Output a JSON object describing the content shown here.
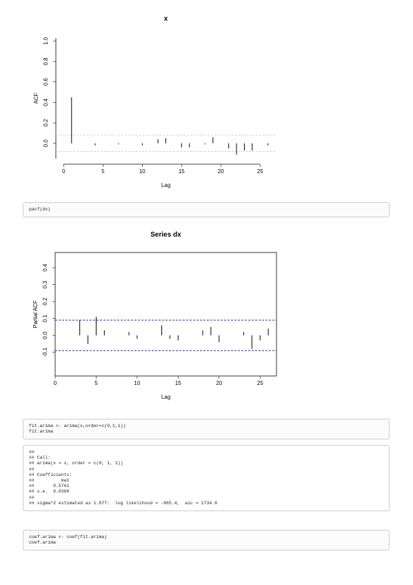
{
  "chart_data": [
    {
      "type": "acf",
      "title": "x",
      "xlabel": "Lag",
      "ylabel": "ACF",
      "x": [
        1,
        2,
        3,
        4,
        5,
        6,
        7,
        8,
        9,
        10,
        11,
        12,
        13,
        14,
        15,
        16,
        17,
        18,
        19,
        20,
        21,
        22,
        23,
        24,
        25,
        26
      ],
      "values": [
        0.45,
        0.0,
        0.0,
        -0.02,
        0.0,
        0.0,
        -0.01,
        0.0,
        0.0,
        -0.02,
        0.0,
        0.04,
        0.05,
        0.0,
        -0.04,
        -0.04,
        0.0,
        -0.01,
        0.06,
        0.0,
        -0.05,
        -0.11,
        -0.07,
        -0.07,
        0.0,
        -0.02
      ],
      "color": "#000000",
      "ci": 0.08,
      "ci_color": "#cccccc",
      "box": false,
      "xlim": [
        -1,
        27
      ],
      "ylim": [
        -0.15,
        1.03
      ],
      "xticks": [
        0,
        5,
        10,
        15,
        20,
        25
      ],
      "yticks": [
        {
          "value": 0,
          "label": "0.0"
        },
        {
          "value": 0.2,
          "label": "0.2"
        },
        {
          "value": 0.4,
          "label": "0.4"
        },
        {
          "value": 0.6,
          "label": "0.6"
        },
        {
          "value": 0.8,
          "label": "0.8"
        },
        {
          "value": 1,
          "label": "1.0"
        }
      ]
    },
    {
      "type": "acf",
      "title": "Series  dx",
      "xlabel": "Lag",
      "ylabel": "Partial ACF",
      "x": [
        1,
        2,
        3,
        4,
        5,
        6,
        7,
        8,
        9,
        10,
        11,
        12,
        13,
        14,
        15,
        16,
        17,
        18,
        19,
        20,
        21,
        22,
        23,
        24,
        25,
        26
      ],
      "values": [
        0.0,
        0.0,
        0.09,
        -0.05,
        0.11,
        0.03,
        0.0,
        0.0,
        0.02,
        -0.02,
        0.0,
        0.0,
        0.06,
        -0.02,
        -0.03,
        0.0,
        0.0,
        0.03,
        0.05,
        -0.04,
        0.0,
        0.0,
        0.02,
        -0.08,
        -0.03,
        0.04
      ],
      "color": "#000000",
      "ci": 0.09,
      "ci_color": "#0000cc",
      "box": true,
      "xlim": [
        0,
        27
      ],
      "ylim": [
        -0.24,
        0.49
      ],
      "xticks": [
        0,
        5,
        10,
        15,
        20,
        25
      ],
      "yticks": [
        {
          "value": -0.1,
          "label": "-0.1"
        },
        {
          "value": 0,
          "label": "0.0"
        },
        0.1,
        0.2,
        0.3,
        0.4
      ]
    }
  ],
  "code_blocks": [
    {
      "lines": [
        "pacf(dx)"
      ]
    },
    {
      "lines": [
        "fit.arima <- arima(x,order=c(0,1,1))",
        "fit.arima"
      ]
    },
    {
      "lines": [
        "##",
        "## Call:",
        "## arima(x = x, order = c(0, 1, 1))",
        "##",
        "## Coefficients:",
        "##          ma1",
        "##       0.5761",
        "## s.e.  0.0360",
        "##",
        "## sigma^2 estimated as 1.877:  log likelihood = -865.4,  aic = 1734.8"
      ]
    },
    {
      "lines": [
        "coef.arima <- coef(fit.arima)",
        "coef.arima"
      ]
    }
  ]
}
